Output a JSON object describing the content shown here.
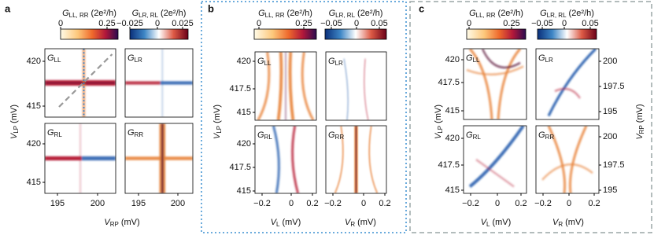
{
  "panels": [
    {
      "label": "a",
      "colorbars": [
        {
          "symbol": "G",
          "sub": "LL, RR",
          "unit": "(2e²/h)",
          "ticks": [
            "0",
            "0.25"
          ]
        },
        {
          "symbol": "G",
          "sub": "LR, RL",
          "unit": "(2e²/h)",
          "ticks": [
            "−0.025",
            "0",
            "0.025"
          ]
        }
      ],
      "maps": [
        {
          "symbol": "G",
          "sub": "LL"
        },
        {
          "symbol": "G",
          "sub": "LR"
        },
        {
          "symbol": "G",
          "sub": "RL"
        },
        {
          "symbol": "G",
          "sub": "RR"
        }
      ],
      "y_axis": {
        "symbol": "V",
        "sub": "LP",
        "unit": "(mV)",
        "ticks": [
          "420",
          "415"
        ]
      },
      "x_axes": [
        {
          "symbol": "V",
          "sub": "RP",
          "unit": "(mV)",
          "ticks": [
            "195",
            "200"
          ]
        }
      ]
    },
    {
      "label": "b",
      "colorbars": [
        {
          "symbol": "G",
          "sub": "LL, RR",
          "unit": "(2e²/h)",
          "ticks": [
            "0",
            "0.25"
          ]
        },
        {
          "symbol": "G",
          "sub": "LR, RL",
          "unit": "(2e²/h)",
          "ticks": [
            "−0.05",
            "0",
            "0.05"
          ]
        }
      ],
      "maps": [
        {
          "symbol": "G",
          "sub": "LL"
        },
        {
          "symbol": "G",
          "sub": "LR"
        },
        {
          "symbol": "G",
          "sub": "RL"
        },
        {
          "symbol": "G",
          "sub": "RR"
        }
      ],
      "y_axis": {
        "symbol": "V",
        "sub": "LP",
        "unit": "(mV)",
        "ticks": [
          "420",
          "417.5",
          "415"
        ]
      },
      "x_axes": [
        {
          "symbol": "V",
          "sub": "L",
          "unit": "(mV)",
          "ticks": [
            "−0.2",
            "0",
            "0.2"
          ]
        },
        {
          "symbol": "V",
          "sub": "R",
          "unit": "(mV)",
          "ticks": [
            "−0.2",
            "0",
            "0.2"
          ]
        }
      ]
    },
    {
      "label": "c",
      "colorbars": [
        {
          "symbol": "G",
          "sub": "LL, RR",
          "unit": "(2e²/h)",
          "ticks": [
            "0",
            "0.25"
          ]
        },
        {
          "symbol": "G",
          "sub": "LR, RL",
          "unit": "(2e²/h)",
          "ticks": [
            "−0.05",
            "0",
            "0.05"
          ]
        }
      ],
      "maps": [
        {
          "symbol": "G",
          "sub": "LL"
        },
        {
          "symbol": "G",
          "sub": "LR"
        },
        {
          "symbol": "G",
          "sub": "RL"
        },
        {
          "symbol": "G",
          "sub": "RR"
        }
      ],
      "y_axis": {
        "symbol": "V",
        "sub": "LP",
        "unit": "(mV)",
        "ticks": [
          "420",
          "417.5",
          "415"
        ]
      },
      "y2_axis": {
        "symbol": "V",
        "sub": "RP",
        "unit": "(mV)",
        "ticks": [
          "200",
          "197.5",
          "195"
        ]
      },
      "x_axes": [
        {
          "symbol": "V",
          "sub": "L",
          "unit": "(mV)",
          "ticks": [
            "−0.2",
            "0",
            "0.2"
          ]
        },
        {
          "symbol": "V",
          "sub": "R",
          "unit": "(mV)",
          "ticks": [
            "−0.2",
            "0",
            "0.2"
          ]
        }
      ]
    }
  ]
}
